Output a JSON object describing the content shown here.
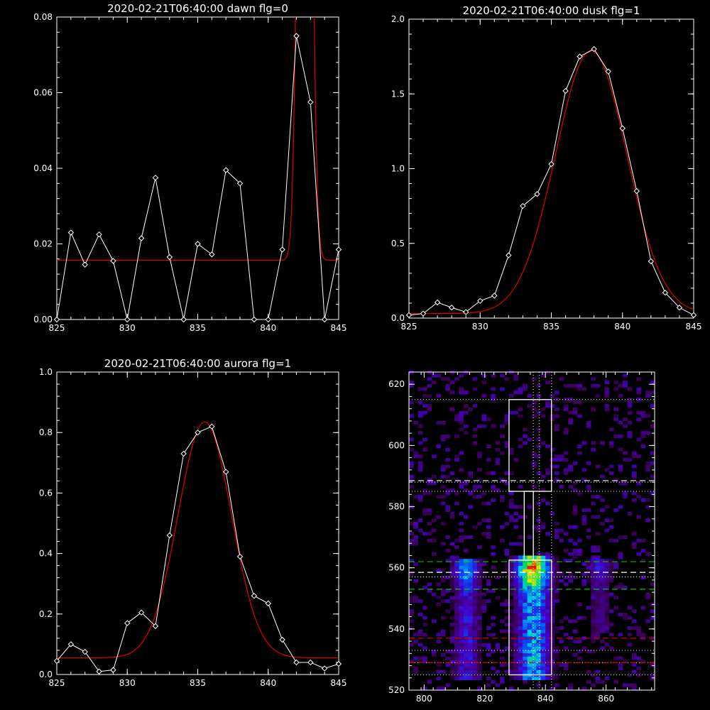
{
  "colors": {
    "observed": "#ffffff",
    "fit": "#e00000",
    "background": "#000000",
    "box": "#ffffff",
    "dash_white": "#ffffff",
    "dash_green": "#00c000",
    "dash_red": "#d00000"
  },
  "chart_data": [
    {
      "type": "line",
      "title": "2020-02-21T06:40:00 dawn flg=0",
      "xlabel": "",
      "ylabel": "",
      "xlim": [
        825,
        845
      ],
      "ylim": [
        0,
        0.08
      ],
      "xticks": [
        "825",
        "830",
        "835",
        "840",
        "845"
      ],
      "yticks": [
        "0.00",
        "0.02",
        "0.04",
        "0.06",
        "0.08"
      ],
      "x": [
        825,
        826,
        827,
        828,
        829,
        830,
        831,
        832,
        833,
        834,
        835,
        836,
        837,
        838,
        839,
        840,
        841,
        842,
        843,
        844,
        845
      ],
      "y": [
        0.0,
        0.023,
        0.0145,
        0.0225,
        0.0155,
        0.0,
        0.0215,
        0.0375,
        0.0165,
        0.0,
        0.02,
        0.0172,
        0.0395,
        0.036,
        0.0,
        0.0,
        0.0185,
        0.075,
        0.0575,
        0.0,
        0.0185
      ],
      "fit": {
        "baseline": 0.0157,
        "amplitude": 0.3,
        "center": 842.6,
        "sigma": 0.38
      }
    },
    {
      "type": "line",
      "title": "2020-02-21T06:40:00 dusk flg=1",
      "xlabel": "",
      "ylabel": "",
      "xlim": [
        825,
        845
      ],
      "ylim": [
        0,
        2.0
      ],
      "xticks": [
        "825",
        "830",
        "835",
        "840",
        "845"
      ],
      "yticks": [
        "0.0",
        "0.5",
        "1.0",
        "1.5",
        "2.0"
      ],
      "x": [
        825,
        826,
        827,
        828,
        829,
        830,
        831,
        832,
        833,
        834,
        835,
        836,
        837,
        838,
        839,
        840,
        841,
        842,
        843,
        844,
        845
      ],
      "y": [
        0.02,
        0.03,
        0.105,
        0.07,
        0.04,
        0.115,
        0.15,
        0.42,
        0.75,
        0.83,
        1.03,
        1.52,
        1.75,
        1.8,
        1.65,
        1.27,
        0.85,
        0.38,
        0.17,
        0.07,
        0.02
      ],
      "fit": {
        "baseline": 0.03,
        "amplitude": 1.76,
        "center": 837.8,
        "sigma": 2.5
      }
    },
    {
      "type": "line",
      "title": "2020-02-21T06:40:00 aurora flg=1",
      "xlabel": "",
      "ylabel": "",
      "xlim": [
        825,
        845
      ],
      "ylim": [
        0,
        1.0
      ],
      "xticks": [
        "825",
        "830",
        "835",
        "840",
        "845"
      ],
      "yticks": [
        "0.0",
        "0.2",
        "0.4",
        "0.6",
        "0.8",
        "1.0"
      ],
      "x": [
        825,
        826,
        827,
        828,
        829,
        830,
        831,
        832,
        833,
        834,
        835,
        836,
        837,
        838,
        839,
        840,
        841,
        842,
        843,
        844,
        845
      ],
      "y": [
        0.045,
        0.1,
        0.075,
        0.01,
        0.015,
        0.17,
        0.205,
        0.16,
        0.46,
        0.73,
        0.8,
        0.82,
        0.67,
        0.39,
        0.26,
        0.235,
        0.115,
        0.04,
        0.04,
        0.02,
        0.035
      ],
      "fit": {
        "baseline": 0.055,
        "amplitude": 0.78,
        "center": 835.5,
        "sigma": 1.9
      }
    },
    {
      "type": "heatmap",
      "title": "",
      "xlabel": "",
      "ylabel": "",
      "xlim": [
        795,
        876
      ],
      "ylim": [
        520,
        624
      ],
      "xticks": [
        "800",
        "820",
        "840",
        "860"
      ],
      "yticks": [
        "520",
        "540",
        "560",
        "580",
        "600",
        "620"
      ],
      "columns": [
        {
          "center": 814,
          "halfwidth": 3,
          "ymin": 525,
          "ymax": 562,
          "intensity": 0.5,
          "hot_y": 559
        },
        {
          "center": 836,
          "halfwidth": 4,
          "ymin": 525,
          "ymax": 563,
          "intensity": 0.85,
          "hot_y": 559
        },
        {
          "center": 858,
          "halfwidth": 2.5,
          "ymin": 540,
          "ymax": 562,
          "intensity": 0.3,
          "hot_y": 560
        }
      ],
      "boxes": [
        {
          "x": [
            828,
            842
          ],
          "y": [
            525,
            562.5
          ]
        },
        {
          "x": [
            828,
            842
          ],
          "y": [
            585,
            615
          ]
        },
        {
          "x": [
            833,
            836
          ],
          "y": [
            562.5,
            585
          ]
        }
      ],
      "vlines_dotted": [
        836,
        838,
        842
      ],
      "hlines_dotted": [
        615,
        588,
        585,
        557,
        533,
        529,
        525
      ],
      "hlines_dashed": [
        {
          "y": 588.5,
          "color": "white"
        },
        {
          "y": 562,
          "color": "green"
        },
        {
          "y": 558.5,
          "color": "white"
        },
        {
          "y": 553,
          "color": "green"
        },
        {
          "y": 537,
          "color": "red"
        },
        {
          "y": 529,
          "color": "red"
        }
      ]
    }
  ]
}
